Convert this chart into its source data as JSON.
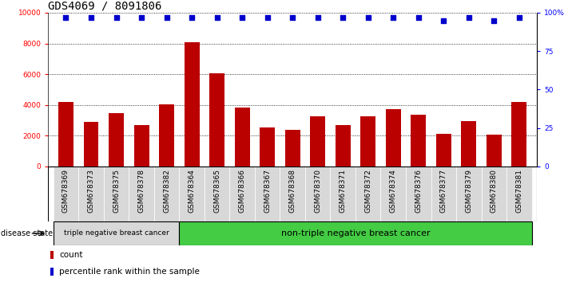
{
  "title": "GDS4069 / 8091806",
  "samples": [
    "GSM678369",
    "GSM678373",
    "GSM678375",
    "GSM678378",
    "GSM678382",
    "GSM678364",
    "GSM678365",
    "GSM678366",
    "GSM678367",
    "GSM678368",
    "GSM678370",
    "GSM678371",
    "GSM678372",
    "GSM678374",
    "GSM678376",
    "GSM678377",
    "GSM678379",
    "GSM678380",
    "GSM678381"
  ],
  "counts": [
    4200,
    2900,
    3450,
    2700,
    4050,
    8100,
    6050,
    3850,
    2550,
    2400,
    3250,
    2700,
    3250,
    3750,
    3350,
    2100,
    2950,
    2050,
    4200
  ],
  "percentiles": [
    97,
    97,
    97,
    97,
    97,
    97,
    97,
    97,
    97,
    97,
    97,
    97,
    97,
    97,
    97,
    95,
    97,
    95,
    97
  ],
  "ylim_left": [
    0,
    10000
  ],
  "ylim_right": [
    0,
    100
  ],
  "yticks_left": [
    0,
    2000,
    4000,
    6000,
    8000,
    10000
  ],
  "yticks_right": [
    0,
    25,
    50,
    75,
    100
  ],
  "ytick_labels_right": [
    "0",
    "25",
    "50",
    "75",
    "100%"
  ],
  "group1_label": "triple negative breast cancer",
  "group2_label": "non-triple negative breast cancer",
  "group1_count": 5,
  "group2_count": 14,
  "disease_state_label": "disease state",
  "legend_count_label": "count",
  "legend_percentile_label": "percentile rank within the sample",
  "bar_color": "#bb0000",
  "percentile_color": "#0000cc",
  "group1_bg": "#d8d8d8",
  "group2_bg": "#44cc44",
  "sample_box_bg": "#d8d8d8",
  "background_color": "#ffffff",
  "dotted_line_color": "#000000",
  "title_fontsize": 10,
  "tick_fontsize": 6.5,
  "label_fontsize": 8
}
